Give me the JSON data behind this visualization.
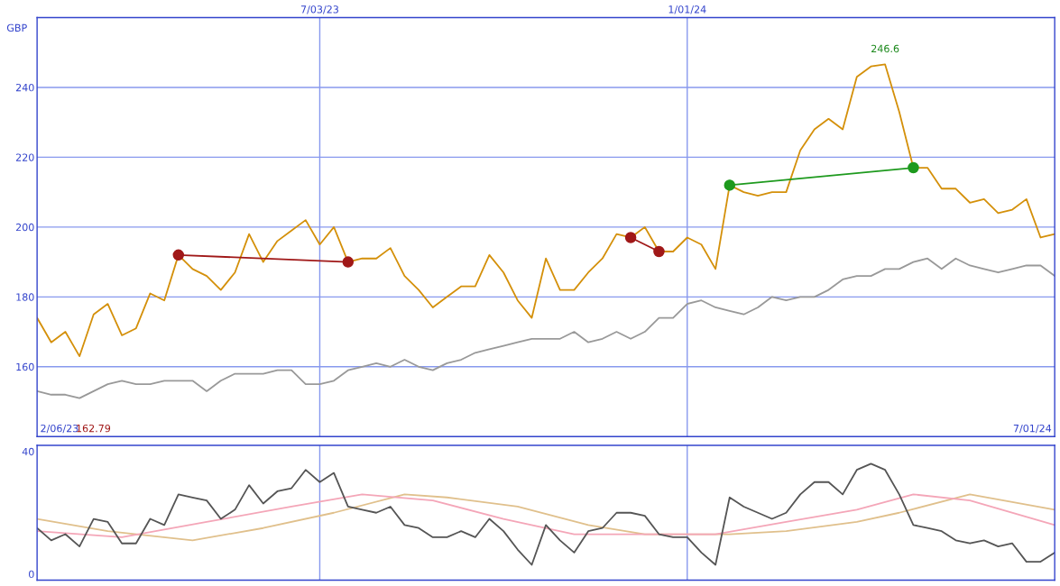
{
  "chart_data": [
    {
      "type": "line",
      "ylabel": "GBP",
      "grid": true,
      "marker": "none",
      "x": [
        "2023-02-13",
        "2023-02-20",
        "2023-02-27",
        "2023-03-06",
        "2023-03-13",
        "2023-03-20",
        "2023-03-27",
        "2023-04-03",
        "2023-04-10",
        "2023-04-17",
        "2023-04-24",
        "2023-05-01",
        "2023-05-08",
        "2023-05-15",
        "2023-05-22",
        "2023-05-29",
        "2023-06-05",
        "2023-06-12",
        "2023-06-19",
        "2023-06-26",
        "2023-07-03",
        "2023-07-10",
        "2023-07-17",
        "2023-07-24",
        "2023-07-31",
        "2023-08-07",
        "2023-08-14",
        "2023-08-21",
        "2023-08-28",
        "2023-09-04",
        "2023-09-11",
        "2023-09-18",
        "2023-09-25",
        "2023-10-02",
        "2023-10-09",
        "2023-10-16",
        "2023-10-23",
        "2023-10-30",
        "2023-11-06",
        "2023-11-13",
        "2023-11-20",
        "2023-11-27",
        "2023-12-04",
        "2023-12-11",
        "2023-12-18",
        "2023-12-25",
        "2024-01-01",
        "2024-01-08",
        "2024-01-15",
        "2024-01-22",
        "2024-01-29",
        "2024-02-05",
        "2024-02-12",
        "2024-02-19",
        "2024-02-26",
        "2024-03-04",
        "2024-03-11",
        "2024-03-18",
        "2024-03-25",
        "2024-04-01",
        "2024-04-08",
        "2024-04-15",
        "2024-04-22",
        "2024-04-29",
        "2024-05-06",
        "2024-05-13",
        "2024-05-20",
        "2024-05-27",
        "2024-06-03",
        "2024-06-10",
        "2024-06-17",
        "2024-06-24",
        "2024-07-01"
      ],
      "xlim": [
        "2023-02-13",
        "2024-07-01"
      ],
      "xticks": [
        {
          "value": "2023-07-03",
          "label": "7/03/23"
        },
        {
          "value": "2024-01-01",
          "label": "1/01/24"
        }
      ],
      "ylim": [
        140,
        260
      ],
      "yticks": [
        160,
        180,
        200,
        220,
        240
      ],
      "series": [
        {
          "color": "#999999",
          "values": [
            153,
            152,
            152,
            151,
            153,
            155,
            156,
            155,
            155,
            156,
            156,
            156,
            153,
            156,
            158,
            158,
            158,
            159,
            159,
            155,
            155,
            156,
            159,
            160,
            161,
            160,
            162,
            160,
            159,
            161,
            162,
            164,
            165,
            166,
            167,
            168,
            168,
            168,
            170,
            167,
            168,
            170,
            168,
            170,
            174,
            174,
            178,
            179,
            177,
            176,
            175,
            177,
            180,
            179,
            180,
            180,
            182,
            185,
            186,
            186,
            188,
            188,
            190,
            191,
            188,
            191,
            189,
            188,
            187,
            188,
            189,
            189,
            186
          ]
        },
        {
          "color": "#d4900a",
          "values": [
            174,
            167,
            170,
            163,
            175,
            178,
            169,
            171,
            181,
            179,
            192,
            188,
            186,
            182,
            187,
            198,
            190,
            196,
            199,
            202,
            195,
            200,
            190,
            191,
            191,
            194,
            186,
            182,
            177,
            180,
            183,
            183,
            192,
            187,
            179,
            174,
            191,
            182,
            182,
            187,
            191,
            198,
            197,
            200,
            193,
            193,
            197,
            195,
            188,
            212,
            210,
            209,
            210,
            210,
            222,
            228,
            231,
            228,
            243,
            246,
            246.6,
            233,
            217,
            217,
            211,
            211,
            207,
            208,
            204,
            205,
            208,
            197,
            198
          ]
        },
        {
          "color": "#a01818",
          "marker": "circle",
          "x": [
            "2023-04-24",
            "2023-07-17"
          ],
          "values": [
            192,
            190
          ]
        },
        {
          "color": "#a01818",
          "marker": "circle",
          "x": [
            "2023-12-04",
            "2023-12-18"
          ],
          "values": [
            197,
            193
          ]
        },
        {
          "color": "#1e9a1e",
          "marker": "circle",
          "x": [
            "2024-01-22",
            "2024-04-22"
          ],
          "values": [
            212,
            217
          ]
        }
      ],
      "annotations": [
        {
          "text": "246.6",
          "x": "2024-04-08",
          "y": 246.6
        },
        "2/06/23",
        "162.79",
        "7/01/24"
      ]
    },
    {
      "type": "line",
      "grid": "x",
      "tick_labels": "y",
      "marker": "none",
      "x": [
        "2023-02-13",
        "2023-02-20",
        "2023-02-27",
        "2023-03-06",
        "2023-03-13",
        "2023-03-20",
        "2023-03-27",
        "2023-04-03",
        "2023-04-10",
        "2023-04-17",
        "2023-04-24",
        "2023-05-01",
        "2023-05-08",
        "2023-05-15",
        "2023-05-22",
        "2023-05-29",
        "2023-06-05",
        "2023-06-12",
        "2023-06-19",
        "2023-06-26",
        "2023-07-03",
        "2023-07-10",
        "2023-07-17",
        "2023-07-24",
        "2023-07-31",
        "2023-08-07",
        "2023-08-14",
        "2023-08-21",
        "2023-08-28",
        "2023-09-04",
        "2023-09-11",
        "2023-09-18",
        "2023-09-25",
        "2023-10-02",
        "2023-10-09",
        "2023-10-16",
        "2023-10-23",
        "2023-10-30",
        "2023-11-06",
        "2023-11-13",
        "2023-11-20",
        "2023-11-27",
        "2023-12-04",
        "2023-12-11",
        "2023-12-18",
        "2023-12-25",
        "2024-01-01",
        "2024-01-08",
        "2024-01-15",
        "2024-01-22",
        "2024-01-29",
        "2024-02-05",
        "2024-02-12",
        "2024-02-19",
        "2024-02-26",
        "2024-03-04",
        "2024-03-11",
        "2024-03-18",
        "2024-03-25",
        "2024-04-01",
        "2024-04-08",
        "2024-04-15",
        "2024-04-22",
        "2024-04-29",
        "2024-05-06",
        "2024-05-13",
        "2024-05-20",
        "2024-05-27",
        "2024-06-03",
        "2024-06-10",
        "2024-06-17",
        "2024-06-24",
        "2024-07-01"
      ],
      "xlim": [
        "2023-02-13",
        "2024-07-01"
      ],
      "xticks": [
        {
          "value": "2023-07-03",
          "label": null
        },
        {
          "value": "2024-01-01",
          "label": null
        }
      ],
      "ylim": [
        -2,
        42
      ],
      "yticks": [
        0,
        40
      ],
      "series": [
        {
          "color": "#e0c08c",
          "x": [
            "2023-02-13",
            "2023-03-20",
            "2023-05-01",
            "2023-06-05",
            "2023-07-10",
            "2023-08-14",
            "2023-09-04",
            "2023-10-09",
            "2023-11-13",
            "2023-12-11",
            "2024-01-22",
            "2024-02-19",
            "2024-03-25",
            "2024-04-15",
            "2024-05-20",
            "2024-07-01"
          ],
          "values": [
            18,
            14,
            11,
            15,
            20,
            26,
            25,
            22,
            16,
            13,
            13,
            14,
            17,
            20,
            26,
            21
          ]
        },
        {
          "color": "#f4a6b8",
          "x": [
            "2023-02-13",
            "2023-03-27",
            "2023-05-08",
            "2023-06-19",
            "2023-07-24",
            "2023-08-28",
            "2023-10-02",
            "2023-11-06",
            "2023-12-11",
            "2024-01-15",
            "2024-02-19",
            "2024-03-25",
            "2024-04-22",
            "2024-05-20",
            "2024-07-01"
          ],
          "values": [
            14,
            12,
            17,
            22,
            26,
            24,
            18,
            13,
            13,
            13,
            17,
            21,
            26,
            24,
            16
          ]
        },
        {
          "color": "#555555",
          "values": [
            15,
            11,
            13,
            9,
            18,
            17,
            10,
            10,
            18,
            16,
            26,
            25,
            24,
            18,
            21,
            29,
            23,
            27,
            28,
            34,
            30,
            33,
            22,
            21,
            20,
            22,
            16,
            15,
            12,
            12,
            14,
            12,
            18,
            14,
            8,
            3,
            16,
            11,
            7,
            14,
            15,
            20,
            20,
            19,
            13,
            12,
            12,
            7,
            3,
            25,
            22,
            20,
            18,
            20,
            26,
            30,
            30,
            26,
            34,
            36,
            34,
            26,
            16,
            15,
            14,
            11,
            10,
            11,
            9,
            10,
            4,
            4,
            7
          ]
        }
      ]
    }
  ]
}
